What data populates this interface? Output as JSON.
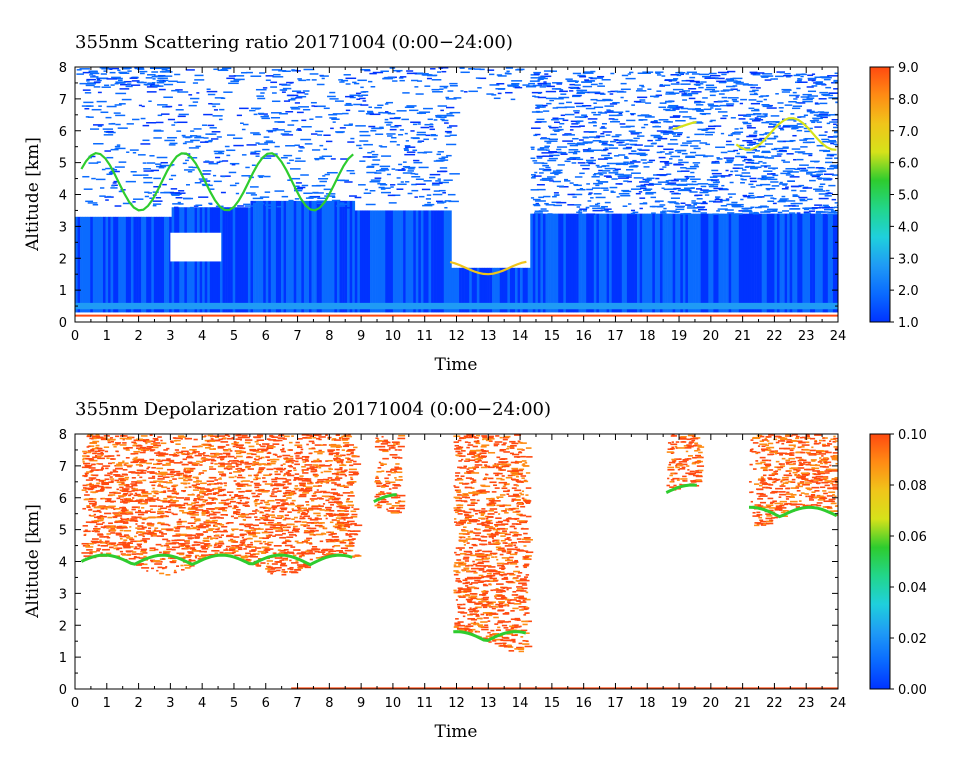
{
  "chart_data": [
    {
      "type": "heatmap",
      "title": "355nm Scattering ratio   20171004  (0:00−24:00)",
      "xlabel": "Time",
      "ylabel": "Altitude [km]",
      "xlim": [
        0,
        24
      ],
      "ylim": [
        0,
        8
      ],
      "x_ticks": [
        "0",
        "1",
        "2",
        "3",
        "4",
        "5",
        "6",
        "7",
        "8",
        "9",
        "10",
        "11",
        "12",
        "13",
        "14",
        "15",
        "16",
        "17",
        "18",
        "19",
        "20",
        "21",
        "22",
        "23",
        "24"
      ],
      "y_ticks": [
        "0",
        "1",
        "2",
        "3",
        "4",
        "5",
        "6",
        "7",
        "8"
      ],
      "colorbar": {
        "range": [
          1.0,
          9.0
        ],
        "ticks": [
          "1.0",
          "2.0",
          "3.0",
          "4.0",
          "5.0",
          "6.0",
          "7.0",
          "8.0",
          "9.0"
        ],
        "colormap": [
          "#0033ff",
          "#0a6bff",
          "#1f9bf5",
          "#1fd0dc",
          "#22d68a",
          "#2ecc2e",
          "#d6e21a",
          "#f0c51a",
          "#ff8c14",
          "#ff4a10"
        ]
      },
      "features": [
        {
          "kind": "background_layer",
          "t": [
            0,
            24
          ],
          "z": [
            0.3,
            3.3
          ],
          "value": 1.8
        },
        {
          "kind": "surface_line",
          "t": [
            0,
            24
          ],
          "z": [
            0.2,
            0.2
          ],
          "value": 8.5
        },
        {
          "kind": "aerosol_band",
          "t": [
            0,
            24
          ],
          "z": [
            0.4,
            0.6
          ],
          "value": 3.0
        },
        {
          "kind": "cloud_base",
          "t": [
            0.2,
            8.8
          ],
          "z": [
            3.5,
            5.3
          ],
          "value": 5.5
        },
        {
          "kind": "cloud_base",
          "t": [
            11.8,
            14.3
          ],
          "z": [
            1.5,
            1.9
          ],
          "value": 7.0
        },
        {
          "kind": "cloud_base",
          "t": [
            18.8,
            19.6
          ],
          "z": [
            6.0,
            6.3
          ],
          "value": 6.0
        },
        {
          "kind": "cloud_base",
          "t": [
            20.8,
            24
          ],
          "z": [
            5.4,
            6.4
          ],
          "value": 6.5
        }
      ]
    },
    {
      "type": "heatmap",
      "title": "355nm Depolarization ratio   20171004  (0:00−24:00)",
      "xlabel": "Time",
      "ylabel": "Altitude [km]",
      "xlim": [
        0,
        24
      ],
      "ylim": [
        0,
        8
      ],
      "x_ticks": [
        "0",
        "1",
        "2",
        "3",
        "4",
        "5",
        "6",
        "7",
        "8",
        "9",
        "10",
        "11",
        "12",
        "13",
        "14",
        "15",
        "16",
        "17",
        "18",
        "19",
        "20",
        "21",
        "22",
        "23",
        "24"
      ],
      "y_ticks": [
        "0",
        "1",
        "2",
        "3",
        "4",
        "5",
        "6",
        "7",
        "8"
      ],
      "colorbar": {
        "range": [
          0.0,
          0.1
        ],
        "ticks": [
          "0.00",
          "0.02",
          "0.04",
          "0.06",
          "0.08",
          "0.10"
        ],
        "colormap": [
          "#0033ff",
          "#0a6bff",
          "#1f9bf5",
          "#1fd0dc",
          "#22d68a",
          "#2ecc2e",
          "#d6e21a",
          "#f0c51a",
          "#ff8c14",
          "#ff4a10"
        ]
      },
      "features": [
        {
          "kind": "ice_cloud",
          "t": [
            0.2,
            8.8
          ],
          "z": [
            3.9,
            8.0
          ],
          "value": 0.09
        },
        {
          "kind": "ice_cloud",
          "t": [
            11.9,
            14.2
          ],
          "z": [
            1.5,
            8.0
          ],
          "value": 0.09
        },
        {
          "kind": "ice_cloud",
          "t": [
            9.4,
            10.2
          ],
          "z": [
            5.8,
            8.0
          ],
          "value": 0.09
        },
        {
          "kind": "ice_cloud",
          "t": [
            18.6,
            19.6
          ],
          "z": [
            6.1,
            8.0
          ],
          "value": 0.09
        },
        {
          "kind": "ice_cloud",
          "t": [
            21.2,
            24
          ],
          "z": [
            5.4,
            8.0
          ],
          "value": 0.09
        },
        {
          "kind": "surface_line",
          "t": [
            6.8,
            24
          ],
          "z": [
            0.0,
            0.0
          ],
          "value": 0.09
        }
      ]
    }
  ]
}
